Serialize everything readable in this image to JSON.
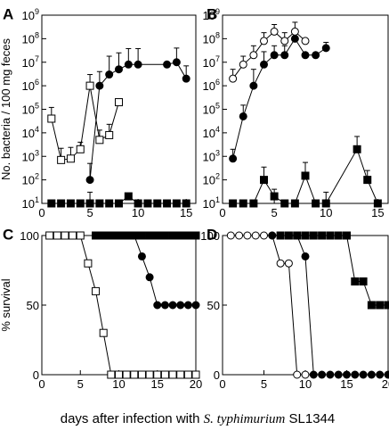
{
  "caption": {
    "prefix": "days after infection with ",
    "organism": "S. typhimurium",
    "suffix": " SL1344"
  },
  "chart_data": [
    {
      "panel": "A",
      "type": "line",
      "ylabel": "No. bacteria / 100 mg feces",
      "xlabel": "",
      "xlim": [
        0,
        16
      ],
      "x_ticks": [
        0,
        5,
        10,
        15
      ],
      "y_scale": "log",
      "ylim": [
        10,
        1000000000
      ],
      "y_ticks": [
        {
          "value": 10,
          "base": "10",
          "exp": "1"
        },
        {
          "value": 100,
          "base": "10",
          "exp": "2"
        },
        {
          "value": 1000,
          "base": "10",
          "exp": "3"
        },
        {
          "value": 10000,
          "base": "10",
          "exp": "4"
        },
        {
          "value": 100000,
          "base": "10",
          "exp": "5"
        },
        {
          "value": 1000000,
          "base": "10",
          "exp": "6"
        },
        {
          "value": 10000000,
          "base": "10",
          "exp": "7"
        },
        {
          "value": 100000000,
          "base": "10",
          "exp": "8"
        },
        {
          "value": 1000000000,
          "base": "10",
          "exp": "9"
        }
      ],
      "series": [
        {
          "marker": "open-square",
          "x": [
            1,
            2,
            3,
            4,
            5,
            6,
            7,
            8
          ],
          "y": [
            40000,
            700,
            800,
            2000,
            1000000,
            5000,
            8000,
            200000
          ],
          "err": [
            80000,
            1500,
            1600,
            2000,
            2000000,
            8000,
            15000,
            0
          ]
        },
        {
          "marker": "filled-circle",
          "x": [
            5,
            6,
            7,
            8,
            9,
            10,
            13,
            14,
            15
          ],
          "y": [
            100,
            1000000,
            3000000,
            5000000,
            8000000,
            8000000,
            8000000,
            10000000,
            2000000
          ],
          "err": [
            400,
            3000000,
            15000000,
            20000000,
            30000000,
            30000000,
            0,
            30000000,
            5000000
          ]
        },
        {
          "marker": "filled-square",
          "x": [
            1,
            2,
            3,
            4,
            5,
            6,
            7,
            8,
            9,
            10,
            11,
            12,
            13,
            14,
            15
          ],
          "y": [
            10,
            10,
            10,
            10,
            10,
            10,
            10,
            10,
            20,
            10,
            10,
            10,
            10,
            10,
            10
          ],
          "err": [
            0,
            0,
            0,
            0,
            20,
            0,
            0,
            0,
            0,
            0,
            0,
            0,
            0,
            0,
            0
          ]
        }
      ]
    },
    {
      "panel": "B",
      "type": "line",
      "xlabel": "",
      "xlim": [
        0,
        16
      ],
      "x_ticks": [
        0,
        5,
        10,
        15
      ],
      "y_scale": "log",
      "ylim": [
        10,
        1000000000
      ],
      "y_ticks": [
        {
          "value": 10,
          "base": "10",
          "exp": "1"
        },
        {
          "value": 100,
          "base": "10",
          "exp": "2"
        },
        {
          "value": 1000,
          "base": "10",
          "exp": "3"
        },
        {
          "value": 10000,
          "base": "10",
          "exp": "4"
        },
        {
          "value": 100000,
          "base": "10",
          "exp": "5"
        },
        {
          "value": 1000000,
          "base": "10",
          "exp": "6"
        },
        {
          "value": 10000000,
          "base": "10",
          "exp": "7"
        },
        {
          "value": 100000000,
          "base": "10",
          "exp": "8"
        },
        {
          "value": 1000000000,
          "base": "10",
          "exp": "9"
        }
      ],
      "series": [
        {
          "marker": "open-circle",
          "x": [
            1,
            2,
            3,
            4,
            5,
            6,
            7,
            8
          ],
          "y": [
            2000000,
            8000000,
            20000000,
            80000000,
            200000000,
            80000000,
            200000000,
            80000000
          ],
          "err": [
            3000000,
            10000000,
            30000000,
            100000000,
            200000000,
            100000000,
            300000000,
            0
          ]
        },
        {
          "marker": "filled-circle",
          "x": [
            1,
            2,
            3,
            4,
            5,
            6,
            7,
            8,
            9,
            10
          ],
          "y": [
            800,
            50000,
            1000000,
            8000000,
            20000000,
            20000000,
            100000000,
            20000000,
            20000000,
            40000000
          ],
          "err": [
            1200,
            100000,
            4000000,
            20000000,
            30000000,
            30000000,
            0,
            0,
            0,
            30000000
          ]
        },
        {
          "marker": "filled-square",
          "x": [
            1,
            2,
            3,
            4,
            5,
            6,
            7,
            8,
            9,
            10,
            13,
            14,
            15
          ],
          "y": [
            10,
            10,
            10,
            100,
            20,
            10,
            10,
            150,
            10,
            10,
            2000,
            100,
            10
          ],
          "err": [
            0,
            0,
            0,
            250,
            20,
            0,
            0,
            400,
            0,
            20,
            5000,
            150,
            0
          ]
        }
      ]
    },
    {
      "panel": "C",
      "type": "line",
      "ylabel": "% survival",
      "xlabel": "",
      "xlim": [
        0,
        20
      ],
      "x_ticks": [
        0,
        5,
        10,
        15,
        20
      ],
      "y_scale": "linear",
      "ylim": [
        0,
        100
      ],
      "y_ticks": [
        {
          "value": 0,
          "label": "0"
        },
        {
          "value": 50,
          "label": "50"
        },
        {
          "value": 100,
          "label": "100"
        }
      ],
      "series": [
        {
          "marker": "open-square",
          "x": [
            1,
            2,
            3,
            4,
            5,
            6,
            7,
            8,
            9,
            10,
            11,
            12,
            13,
            14,
            15,
            16,
            17,
            18,
            19,
            20
          ],
          "y": [
            100,
            100,
            100,
            100,
            100,
            80,
            60,
            30,
            0,
            0,
            0,
            0,
            0,
            0,
            0,
            0,
            0,
            0,
            0,
            0
          ]
        },
        {
          "marker": "filled-circle",
          "x": [
            12,
            13,
            14,
            15,
            16,
            17,
            18,
            19,
            20
          ],
          "y": [
            100,
            85,
            70,
            50,
            50,
            50,
            50,
            50,
            50
          ]
        },
        {
          "marker": "filled-square",
          "x": [
            7,
            8,
            9,
            10,
            11,
            12,
            13,
            14,
            15,
            16,
            17,
            18,
            19,
            20
          ],
          "y": [
            100,
            100,
            100,
            100,
            100,
            100,
            100,
            100,
            100,
            100,
            100,
            100,
            100,
            100
          ]
        }
      ]
    },
    {
      "panel": "D",
      "type": "line",
      "xlabel": "",
      "xlim": [
        0,
        20
      ],
      "x_ticks": [
        0,
        5,
        10,
        15,
        20
      ],
      "y_scale": "linear",
      "ylim": [
        0,
        100
      ],
      "y_ticks": [
        {
          "value": 0,
          "label": "0"
        },
        {
          "value": 50,
          "label": "50"
        },
        {
          "value": 100,
          "label": "100"
        }
      ],
      "series": [
        {
          "marker": "open-circle",
          "x": [
            1,
            2,
            3,
            4,
            5,
            6,
            7,
            8,
            9,
            10
          ],
          "y": [
            100,
            100,
            100,
            100,
            100,
            100,
            80,
            80,
            0,
            0
          ]
        },
        {
          "marker": "filled-circle",
          "x": [
            6,
            7,
            8,
            9,
            10,
            11,
            12,
            13,
            14,
            15,
            16,
            17,
            18,
            19,
            20
          ],
          "y": [
            100,
            100,
            100,
            100,
            85,
            0,
            0,
            0,
            0,
            0,
            0,
            0,
            0,
            0,
            0
          ]
        },
        {
          "marker": "filled-square",
          "x": [
            7,
            8,
            9,
            10,
            11,
            12,
            13,
            14,
            15,
            16,
            17,
            18,
            19,
            20
          ],
          "y": [
            100,
            100,
            100,
            100,
            100,
            100,
            100,
            100,
            100,
            67,
            67,
            50,
            50,
            50
          ]
        }
      ]
    }
  ]
}
